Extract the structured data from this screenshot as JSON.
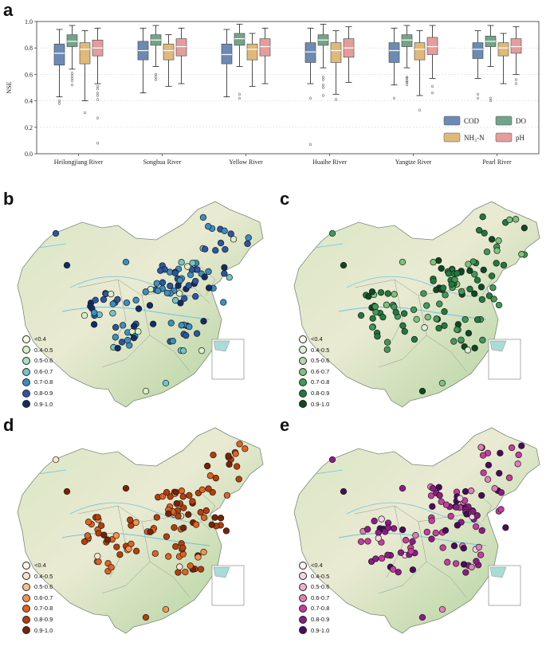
{
  "panel_a": {
    "letter": "a",
    "chart_data": {
      "type": "box",
      "ylabel": "NSE",
      "ylim": [
        0.0,
        1.0
      ],
      "yticks": [
        "0.0",
        "0.2",
        "0.4",
        "0.6",
        "0.8",
        "1.0"
      ],
      "categories": [
        "Heilongjiang River",
        "Songhua River",
        "Yellow River",
        "Huaihe River",
        "Yangtze River",
        "Pearl River"
      ],
      "series": [
        {
          "name": "COD",
          "color": "#6b8bb5",
          "boxes": [
            {
              "whislo": 0.43,
              "q1": 0.67,
              "med": 0.76,
              "q3": 0.83,
              "whishi": 0.94,
              "fliers": [
                0.4,
                0.38
              ]
            },
            {
              "whislo": 0.46,
              "q1": 0.71,
              "med": 0.78,
              "q3": 0.85,
              "whishi": 0.95,
              "fliers": []
            },
            {
              "whislo": 0.43,
              "q1": 0.68,
              "med": 0.75,
              "q3": 0.83,
              "whishi": 0.94,
              "fliers": []
            },
            {
              "whislo": 0.53,
              "q1": 0.69,
              "med": 0.77,
              "q3": 0.84,
              "whishi": 0.95,
              "fliers": [
                0.42,
                0.07
              ]
            },
            {
              "whislo": 0.52,
              "q1": 0.69,
              "med": 0.78,
              "q3": 0.84,
              "whishi": 0.95,
              "fliers": [
                0.42
              ]
            },
            {
              "whislo": 0.57,
              "q1": 0.72,
              "med": 0.79,
              "q3": 0.84,
              "whishi": 0.93,
              "fliers": [
                0.45,
                0.42
              ]
            }
          ]
        },
        {
          "name": "DO",
          "color": "#74a487",
          "boxes": [
            {
              "whislo": 0.64,
              "q1": 0.81,
              "med": 0.85,
              "q3": 0.9,
              "whishi": 0.97,
              "fliers": [
                0.61,
                0.59,
                0.57,
                0.55,
                0.52
              ]
            },
            {
              "whislo": 0.66,
              "q1": 0.82,
              "med": 0.86,
              "q3": 0.9,
              "whishi": 0.97,
              "fliers": [
                0.6,
                0.58,
                0.56
              ]
            },
            {
              "whislo": 0.66,
              "q1": 0.82,
              "med": 0.87,
              "q3": 0.91,
              "whishi": 0.98,
              "fliers": [
                0.45,
                0.42
              ]
            },
            {
              "whislo": 0.65,
              "q1": 0.82,
              "med": 0.86,
              "q3": 0.9,
              "whishi": 0.98,
              "fliers": [
                0.58,
                0.56,
                0.52,
                0.5,
                0.44
              ]
            },
            {
              "whislo": 0.65,
              "q1": 0.81,
              "med": 0.86,
              "q3": 0.9,
              "whishi": 0.97,
              "fliers": [
                0.58,
                0.57,
                0.55,
                0.54,
                0.52
              ]
            },
            {
              "whislo": 0.66,
              "q1": 0.81,
              "med": 0.85,
              "q3": 0.89,
              "whishi": 0.97,
              "fliers": [
                0.42,
                0.4
              ]
            }
          ]
        },
        {
          "name": "NH₃-N",
          "color": "#dfb97a",
          "boxes": [
            {
              "whislo": 0.4,
              "q1": 0.68,
              "med": 0.79,
              "q3": 0.84,
              "whishi": 0.93,
              "fliers": [
                0.31
              ]
            },
            {
              "whislo": 0.51,
              "q1": 0.71,
              "med": 0.78,
              "q3": 0.83,
              "whishi": 0.9,
              "fliers": []
            },
            {
              "whislo": 0.51,
              "q1": 0.71,
              "med": 0.79,
              "q3": 0.83,
              "whishi": 0.91,
              "fliers": []
            },
            {
              "whislo": 0.45,
              "q1": 0.69,
              "med": 0.78,
              "q3": 0.84,
              "whishi": 0.93,
              "fliers": [
                0.41
              ]
            },
            {
              "whislo": 0.44,
              "q1": 0.71,
              "med": 0.79,
              "q3": 0.84,
              "whishi": 0.93,
              "fliers": [
                0.33
              ]
            },
            {
              "whislo": 0.53,
              "q1": 0.74,
              "med": 0.8,
              "q3": 0.84,
              "whishi": 0.91,
              "fliers": []
            }
          ]
        },
        {
          "name": "pH",
          "color": "#e59d9b",
          "boxes": [
            {
              "whislo": 0.53,
              "q1": 0.74,
              "med": 0.8,
              "q3": 0.86,
              "whishi": 0.95,
              "fliers": [
                0.51,
                0.49,
                0.46,
                0.44,
                0.41,
                0.27,
                0.08
              ]
            },
            {
              "whislo": 0.53,
              "q1": 0.74,
              "med": 0.81,
              "q3": 0.87,
              "whishi": 0.95,
              "fliers": []
            },
            {
              "whislo": 0.53,
              "q1": 0.74,
              "med": 0.81,
              "q3": 0.87,
              "whishi": 0.95,
              "fliers": []
            },
            {
              "whislo": 0.54,
              "q1": 0.73,
              "med": 0.8,
              "q3": 0.87,
              "whishi": 0.96,
              "fliers": []
            },
            {
              "whislo": 0.57,
              "q1": 0.75,
              "med": 0.81,
              "q3": 0.88,
              "whishi": 0.97,
              "fliers": [
                0.51,
                0.46
              ]
            },
            {
              "whislo": 0.6,
              "q1": 0.76,
              "med": 0.81,
              "q3": 0.87,
              "whishi": 0.96,
              "fliers": [
                0.56,
                0.53
              ]
            }
          ]
        }
      ],
      "legend": [
        "COD",
        "DO",
        "NH₃-N",
        "pH"
      ],
      "legend_position": "bottom-right"
    }
  },
  "maps": {
    "legend_labels": [
      "<0.4",
      "0.4-0.5",
      "0.5-0.6",
      "0.6-0.7",
      "0.7-0.8",
      "0.8-0.9",
      "0.9-1.0"
    ],
    "panels": [
      {
        "letter": "b",
        "variable": "COD",
        "palette": [
          "#f7fbe2",
          "#d8f0c4",
          "#a8ddc3",
          "#72c4cb",
          "#3b8fc0",
          "#2a56a4",
          "#122c66"
        ]
      },
      {
        "letter": "c",
        "variable": "DO",
        "palette": [
          "#f6fbe8",
          "#dcf0d2",
          "#afdba5",
          "#7cc27c",
          "#3f9a57",
          "#1f7a3d",
          "#0d4a22"
        ]
      },
      {
        "letter": "d",
        "variable": "NH3-N",
        "palette": [
          "#fff6e8",
          "#fde2c6",
          "#fcbf8b",
          "#f7934e",
          "#e2621f",
          "#b73e08",
          "#7a2203"
        ]
      },
      {
        "letter": "e",
        "variable": "pH",
        "palette": [
          "#fbf0f4",
          "#f5d4e2",
          "#efb1cf",
          "#e07fb8",
          "#c93ba0",
          "#8e1b86",
          "#4a0a5e"
        ]
      }
    ]
  }
}
